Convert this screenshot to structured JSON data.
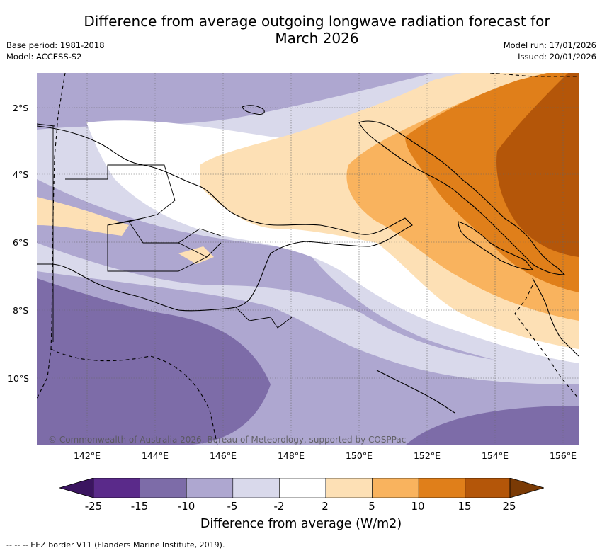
{
  "title": "Difference from average outgoing longwave radiation forecast for March 2026",
  "base_period": "Base period: 1981-2018",
  "model": "Model: ACCESS-S2",
  "model_run": "Model run: 17/01/2026",
  "issued": "Issued: 20/01/2026",
  "latitudes": [
    "2°S",
    "4°S",
    "6°S",
    "8°S",
    "10°S"
  ],
  "longitudes": [
    "142°E",
    "144°E",
    "146°E",
    "148°E",
    "150°E",
    "152°E",
    "154°E",
    "156°E"
  ],
  "credit": "© Commonwealth of Australia 2026, Bureau of Meteorology, supported by COSPPac",
  "colorbar": {
    "ticks": [
      "-25",
      "-15",
      "-10",
      "-5",
      "-2",
      "2",
      "5",
      "10",
      "15",
      "25"
    ],
    "colors": [
      "#3b1560",
      "#5a2a8a",
      "#7d6ca8",
      "#aea7d0",
      "#d9d9eb",
      "#ffffff",
      "#fde0b5",
      "#f9b35e",
      "#e07f1a",
      "#b45609",
      "#7a3a05"
    ],
    "label": "Difference from average (W/m2)"
  },
  "legend_eez": "--  --  -- EEZ border V11 (Flanders Marine Institute, 2019)."
}
